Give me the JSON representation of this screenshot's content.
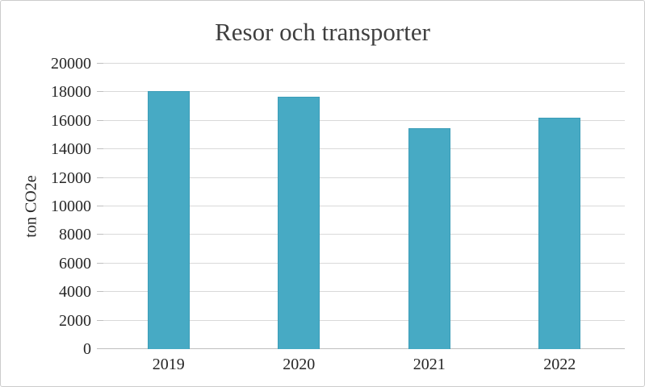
{
  "frame": {
    "background": "#ffffff",
    "border_color": "#cccccc"
  },
  "chart_data": {
    "type": "bar",
    "title": "Resor och transporter",
    "ylabel": "ton CO2e",
    "xlabel": "",
    "categories": [
      "2019",
      "2020",
      "2021",
      "2022"
    ],
    "values": [
      18100,
      17700,
      15500,
      16200
    ],
    "ylim": [
      0,
      20000
    ],
    "yticks": [
      0,
      2000,
      4000,
      6000,
      8000,
      10000,
      12000,
      14000,
      16000,
      18000,
      20000
    ],
    "grid": "horizontal",
    "legend": "none",
    "colors": {
      "bar_fill": "#47aac4",
      "bar_border": "#3c9db8",
      "gridline": "#d9d9d9",
      "axis_line": "#bfbfbf",
      "title_text": "#3f3f3f",
      "tick_text": "#262626"
    }
  }
}
